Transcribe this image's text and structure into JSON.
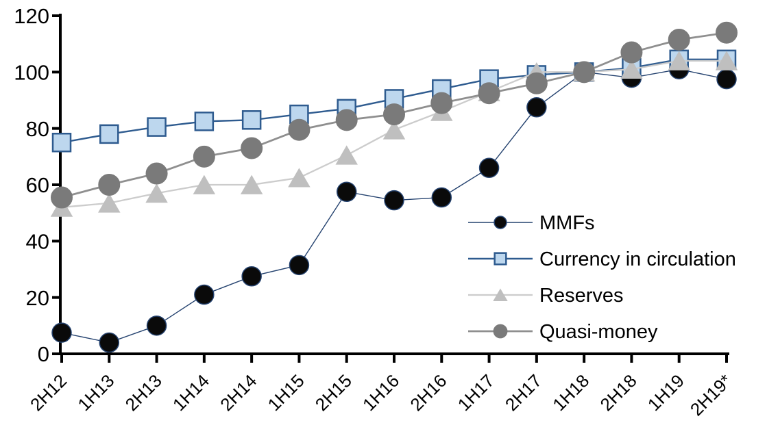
{
  "chart_data": {
    "type": "line",
    "title": "",
    "xlabel": "",
    "ylabel": "",
    "ylim": [
      0,
      120
    ],
    "y_ticks": [
      0,
      20,
      40,
      60,
      80,
      100,
      120
    ],
    "grid": false,
    "legend_position": "center-right",
    "axis_color": "#000000",
    "background_color": "#ffffff",
    "categories": [
      "2H12",
      "1H13",
      "2H13",
      "1H14",
      "2H14",
      "1H15",
      "2H15",
      "1H16",
      "2H16",
      "1H17",
      "2H17",
      "1H18",
      "2H18",
      "1H19",
      "2H19*"
    ],
    "series": [
      {
        "name": "MMFs",
        "marker": "circle",
        "marker_color": "#0a0a0a",
        "marker_outline": "#24426f",
        "line_color": "#24426f",
        "values": [
          7.5,
          4,
          10,
          21,
          27.5,
          31.5,
          57.5,
          54.5,
          55.5,
          66,
          87.5,
          100,
          98,
          101,
          97.5
        ]
      },
      {
        "name": "Currency in circulation",
        "marker": "square",
        "marker_color": "#bdd7ee",
        "marker_outline": "#2e5b8f",
        "line_color": "#2e5b8f",
        "values": [
          75,
          78,
          80.5,
          82.5,
          83,
          85,
          87,
          90.5,
          94,
          97.5,
          99,
          100,
          101.5,
          104.5,
          104.5
        ]
      },
      {
        "name": "Reserves",
        "marker": "triangle",
        "marker_color": "#bfbfbf",
        "marker_outline": "#bfbfbf",
        "line_color": "#cccccc",
        "values": [
          52,
          53.5,
          57,
          60,
          60,
          62.5,
          70.5,
          79.5,
          86,
          93,
          100,
          100,
          101,
          104,
          104
        ]
      },
      {
        "name": "Quasi-money",
        "marker": "circle",
        "marker_color": "#7a7a7a",
        "marker_outline": "#7a7a7a",
        "line_color": "#8f8f8f",
        "values": [
          55.5,
          60,
          64,
          70,
          73,
          79.5,
          83,
          85,
          89,
          92.5,
          96,
          100,
          107,
          111.5,
          114
        ]
      }
    ]
  }
}
